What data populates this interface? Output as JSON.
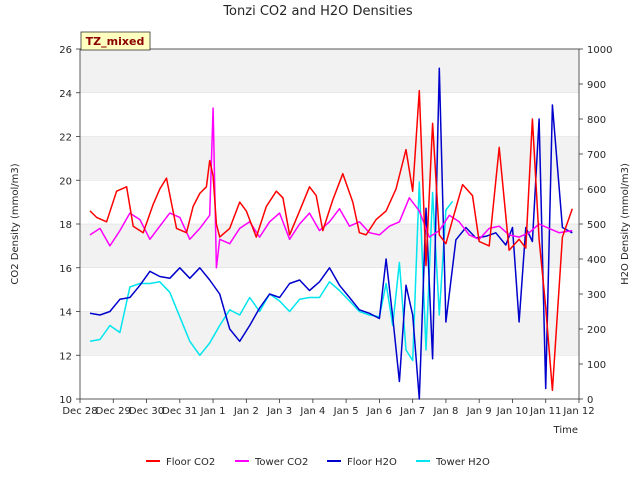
{
  "chart_data": {
    "type": "line",
    "title": "Tonzi CO2 and H2O Densities",
    "badge": "TZ_mixed",
    "xlabel": "Time",
    "ylabel_left": "CO2 Density (mmol/m3)",
    "ylabel_right": "H2O Density (mmol/m3)",
    "x_ticks": [
      "Dec 28",
      "Dec 29",
      "Dec 30",
      "Dec 31",
      "Jan 1",
      "Jan 2",
      "Jan 3",
      "Jan 4",
      "Jan 5",
      "Jan 6",
      "Jan 7",
      "Jan 8",
      "Jan 9",
      "Jan 10",
      "Jan 11",
      "Jan 12"
    ],
    "xlim_days": [
      0,
      15
    ],
    "ylim_left": [
      10,
      26
    ],
    "y_ticks_left": [
      10,
      12,
      14,
      16,
      18,
      20,
      22,
      24,
      26
    ],
    "ylim_right": [
      0,
      1000
    ],
    "y_ticks_right": [
      0,
      100,
      200,
      300,
      400,
      500,
      600,
      700,
      800,
      900,
      1000
    ],
    "grid": "horizontal bands",
    "legend_position": "bottom-center",
    "series": [
      {
        "name": "Floor CO2",
        "axis": "left",
        "color": "#ff0000",
        "x": [
          0.3,
          0.5,
          0.8,
          1.1,
          1.4,
          1.6,
          1.9,
          2.2,
          2.4,
          2.6,
          2.9,
          3.2,
          3.4,
          3.6,
          3.8,
          3.9,
          4.0,
          4.1,
          4.2,
          4.5,
          4.8,
          5.0,
          5.3,
          5.6,
          5.9,
          6.1,
          6.3,
          6.6,
          6.9,
          7.1,
          7.3,
          7.6,
          7.9,
          8.2,
          8.4,
          8.6,
          8.9,
          9.2,
          9.5,
          9.8,
          10.0,
          10.2,
          10.4,
          10.6,
          10.8,
          11.0,
          11.2,
          11.5,
          11.8,
          12.0,
          12.3,
          12.6,
          12.9,
          13.2,
          13.4,
          13.6,
          13.8,
          14.0,
          14.2,
          14.5,
          14.8
        ],
        "y": [
          18.6,
          18.3,
          18.1,
          19.5,
          19.7,
          17.9,
          17.6,
          18.9,
          19.6,
          20.1,
          17.8,
          17.6,
          18.8,
          19.4,
          19.7,
          20.9,
          20.2,
          18.0,
          17.4,
          17.8,
          19.0,
          18.6,
          17.4,
          18.8,
          19.5,
          19.2,
          17.5,
          18.6,
          19.7,
          19.3,
          17.7,
          19.1,
          20.3,
          19.0,
          17.6,
          17.5,
          18.2,
          18.6,
          19.6,
          21.4,
          19.5,
          24.1,
          16.1,
          22.6,
          17.5,
          17.1,
          18.2,
          19.8,
          19.3,
          17.2,
          17.0,
          21.5,
          16.8,
          17.3,
          16.9,
          22.8,
          17.3,
          14.2,
          10.4,
          17.4,
          18.7
        ]
      },
      {
        "name": "Tower CO2",
        "axis": "left",
        "color": "#ff00ff",
        "x": [
          0.3,
          0.6,
          0.9,
          1.2,
          1.5,
          1.8,
          2.1,
          2.4,
          2.7,
          3.0,
          3.3,
          3.6,
          3.9,
          4.0,
          4.1,
          4.2,
          4.5,
          4.8,
          5.1,
          5.4,
          5.7,
          6.0,
          6.3,
          6.6,
          6.9,
          7.2,
          7.5,
          7.8,
          8.1,
          8.4,
          8.7,
          9.0,
          9.3,
          9.6,
          9.9,
          10.2,
          10.5,
          10.8,
          11.1,
          11.4,
          11.7,
          12.0,
          12.3,
          12.6,
          12.9,
          13.2,
          13.5,
          13.8,
          14.1,
          14.4,
          14.8
        ],
        "y": [
          17.5,
          17.8,
          17.0,
          17.7,
          18.5,
          18.2,
          17.3,
          17.9,
          18.5,
          18.3,
          17.3,
          17.8,
          18.4,
          23.3,
          16.0,
          17.3,
          17.1,
          17.8,
          18.1,
          17.4,
          18.1,
          18.5,
          17.3,
          18.0,
          18.5,
          17.7,
          18.1,
          18.7,
          17.9,
          18.1,
          17.6,
          17.5,
          17.9,
          18.1,
          19.2,
          18.6,
          17.4,
          17.7,
          18.4,
          18.1,
          17.5,
          17.3,
          17.8,
          17.9,
          17.5,
          17.4,
          17.6,
          18.0,
          17.8,
          17.6,
          17.7
        ]
      },
      {
        "name": "Floor H2O",
        "axis": "right",
        "color": "#0000cc",
        "x": [
          0.3,
          0.6,
          0.9,
          1.2,
          1.5,
          1.8,
          2.1,
          2.4,
          2.7,
          3.0,
          3.3,
          3.6,
          3.9,
          4.2,
          4.5,
          4.8,
          5.1,
          5.4,
          5.7,
          6.0,
          6.3,
          6.6,
          6.9,
          7.2,
          7.5,
          7.8,
          8.1,
          8.4,
          8.7,
          9.0,
          9.2,
          9.4,
          9.6,
          9.8,
          10.0,
          10.2,
          10.4,
          10.6,
          10.8,
          11.0,
          11.3,
          11.6,
          11.9,
          12.2,
          12.5,
          12.8,
          13.0,
          13.2,
          13.4,
          13.6,
          13.8,
          14.0,
          14.2,
          14.5,
          14.8
        ],
        "y": [
          245,
          240,
          250,
          285,
          290,
          325,
          365,
          350,
          345,
          375,
          345,
          375,
          340,
          300,
          200,
          165,
          210,
          260,
          300,
          290,
          330,
          340,
          310,
          335,
          375,
          325,
          290,
          255,
          245,
          230,
          400,
          235,
          50,
          325,
          240,
          0,
          545,
          115,
          945,
          220,
          455,
          490,
          460,
          465,
          475,
          440,
          490,
          220,
          490,
          450,
          800,
          30,
          840,
          490,
          475
        ]
      },
      {
        "name": "Tower H2O",
        "axis": "right",
        "color": "#00e5ee",
        "x": [
          0.3,
          0.6,
          0.9,
          1.2,
          1.5,
          1.8,
          2.1,
          2.4,
          2.7,
          3.0,
          3.3,
          3.6,
          3.9,
          4.2,
          4.5,
          4.8,
          5.1,
          5.4,
          5.7,
          6.0,
          6.3,
          6.6,
          6.9,
          7.2,
          7.5,
          7.8,
          8.1,
          8.4,
          8.7,
          9.0,
          9.2,
          9.4,
          9.6,
          9.8,
          10.0,
          10.2,
          10.4,
          10.6,
          10.8,
          11.0,
          11.2
        ],
        "y": [
          165,
          170,
          210,
          190,
          320,
          330,
          330,
          335,
          305,
          235,
          165,
          125,
          160,
          210,
          255,
          240,
          290,
          250,
          300,
          280,
          250,
          285,
          290,
          290,
          335,
          310,
          280,
          250,
          240,
          235,
          330,
          210,
          390,
          140,
          110,
          620,
          140,
          590,
          240,
          540,
          565
        ]
      }
    ]
  },
  "legend": {
    "floor_co2": "Floor CO2",
    "tower_co2": "Tower CO2",
    "floor_h2o": "Floor H2O",
    "tower_h2o": "Tower H2O"
  }
}
